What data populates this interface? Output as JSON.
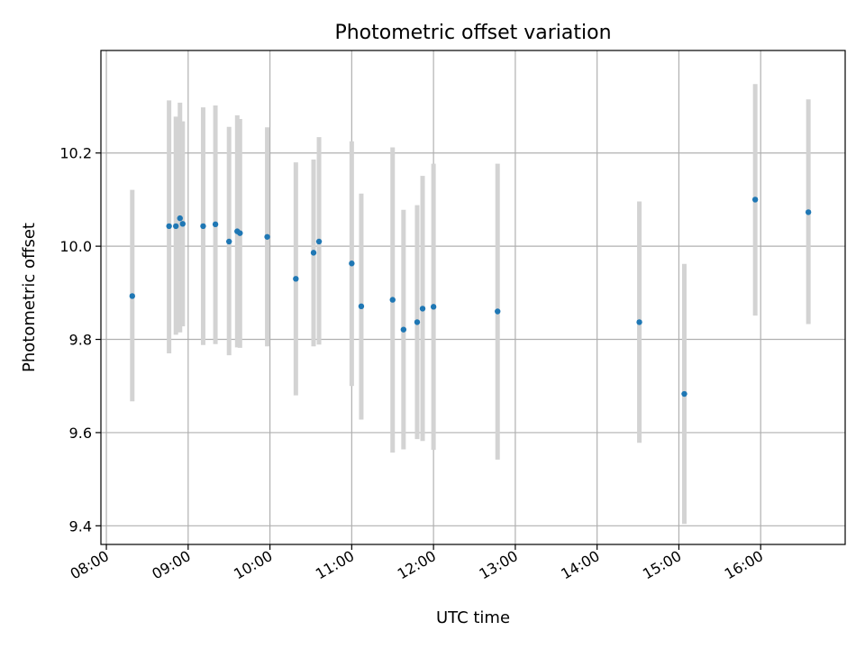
{
  "chart_data": {
    "type": "scatter",
    "title": "Photometric offset variation",
    "xlabel": "UTC time",
    "ylabel": "Photometric offset",
    "x_axis": {
      "type": "time",
      "range": [
        "07:56",
        "17:02"
      ],
      "ticks": [
        "08:00",
        "09:00",
        "10:00",
        "11:00",
        "12:00",
        "13:00",
        "14:00",
        "15:00",
        "16:00"
      ]
    },
    "y_axis": {
      "range": [
        9.36,
        10.42
      ],
      "ticks": [
        "9.4",
        "9.6",
        "9.8",
        "10.0",
        "10.2"
      ]
    },
    "grid": true,
    "marker_color": "#1f77b4",
    "errorbar_color": "#d3d3d3",
    "points": [
      {
        "x": "08:19",
        "y": 9.893,
        "low": 9.667,
        "high": 10.121
      },
      {
        "x": "08:46",
        "y": 10.043,
        "low": 9.77,
        "high": 10.313
      },
      {
        "x": "08:51",
        "y": 10.043,
        "low": 9.81,
        "high": 10.278
      },
      {
        "x": "08:54",
        "y": 10.06,
        "low": 9.815,
        "high": 10.308
      },
      {
        "x": "08:56",
        "y": 10.048,
        "low": 9.828,
        "high": 10.268
      },
      {
        "x": "09:11",
        "y": 10.043,
        "low": 9.788,
        "high": 10.298
      },
      {
        "x": "09:20",
        "y": 10.047,
        "low": 9.79,
        "high": 10.302
      },
      {
        "x": "09:30",
        "y": 10.01,
        "low": 9.766,
        "high": 10.256
      },
      {
        "x": "09:36",
        "y": 10.032,
        "low": 9.783,
        "high": 10.281
      },
      {
        "x": "09:38",
        "y": 10.028,
        "low": 9.782,
        "high": 10.273
      },
      {
        "x": "09:58",
        "y": 10.02,
        "low": 9.785,
        "high": 10.255
      },
      {
        "x": "10:19",
        "y": 9.93,
        "low": 9.68,
        "high": 10.18
      },
      {
        "x": "10:32",
        "y": 9.986,
        "low": 9.785,
        "high": 10.186
      },
      {
        "x": "10:36",
        "y": 10.01,
        "low": 9.789,
        "high": 10.234
      },
      {
        "x": "11:00",
        "y": 9.963,
        "low": 9.7,
        "high": 10.225
      },
      {
        "x": "11:07",
        "y": 9.871,
        "low": 9.628,
        "high": 10.113
      },
      {
        "x": "11:30",
        "y": 9.885,
        "low": 9.557,
        "high": 10.212
      },
      {
        "x": "11:38",
        "y": 9.821,
        "low": 9.564,
        "high": 10.078
      },
      {
        "x": "11:48",
        "y": 9.837,
        "low": 9.586,
        "high": 10.088
      },
      {
        "x": "11:52",
        "y": 9.866,
        "low": 9.582,
        "high": 10.151
      },
      {
        "x": "12:00",
        "y": 9.87,
        "low": 9.563,
        "high": 10.177
      },
      {
        "x": "12:47",
        "y": 9.86,
        "low": 9.542,
        "high": 10.177
      },
      {
        "x": "14:31",
        "y": 9.837,
        "low": 9.578,
        "high": 10.096
      },
      {
        "x": "15:04",
        "y": 9.683,
        "low": 9.404,
        "high": 9.962
      },
      {
        "x": "15:56",
        "y": 10.1,
        "low": 9.851,
        "high": 10.348
      },
      {
        "x": "16:35",
        "y": 10.073,
        "low": 9.833,
        "high": 10.315
      }
    ]
  }
}
